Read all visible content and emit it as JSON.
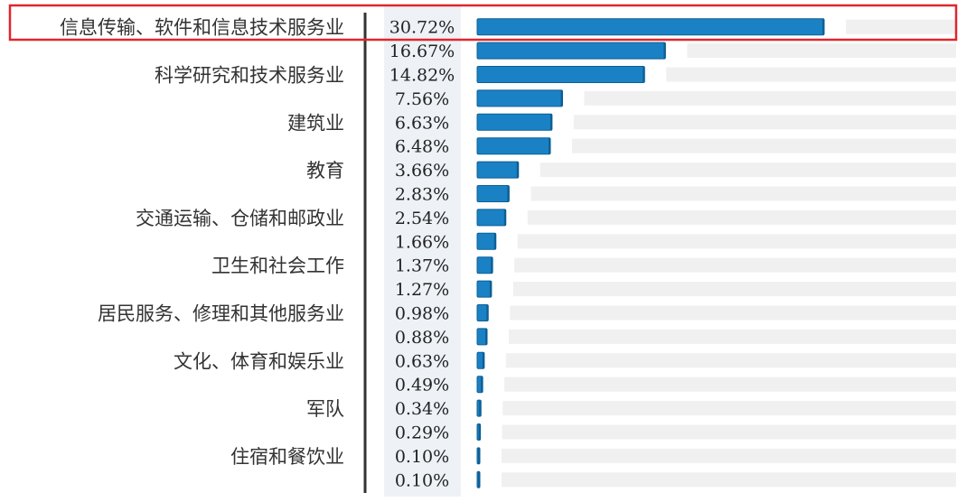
{
  "chart_data": {
    "type": "bar",
    "orientation": "horizontal",
    "categories": [
      "信息传输、软件和信息技术服务业",
      "",
      "科学研究和技术服务业",
      "",
      "建筑业",
      "",
      "教育",
      "",
      "交通运输、仓储和邮政业",
      "",
      "卫生和社会工作",
      "",
      "居民服务、修理和其他服务业",
      "",
      "文化、体育和娱乐业",
      "",
      "军队",
      "",
      "住宿和餐饮业",
      ""
    ],
    "values": [
      30.72,
      16.67,
      14.82,
      7.56,
      6.63,
      6.48,
      3.66,
      2.83,
      2.54,
      1.66,
      1.37,
      1.27,
      0.98,
      0.88,
      0.63,
      0.49,
      0.34,
      0.29,
      0.1,
      0.1
    ],
    "value_labels": [
      "30.72%",
      "16.67%",
      "14.82%",
      "7.56%",
      "6.63%",
      "6.48%",
      "3.66%",
      "2.83%",
      "2.54%",
      "1.66%",
      "1.37%",
      "1.27%",
      "0.98%",
      "0.88%",
      "0.63%",
      "0.49%",
      "0.34%",
      "0.29%",
      "0.10%",
      "0.10%"
    ],
    "unit": "%",
    "xlim": [
      0,
      30.72
    ],
    "highlighted_index": 0,
    "grid": false,
    "legend": "none"
  },
  "colors": {
    "bar": "#1a82c4",
    "bar_dark": "#0d5f96",
    "track": "#f0f0f0",
    "value_column_bg": "#eef2f7",
    "axis": "#333333",
    "highlight": "#e0262b"
  }
}
